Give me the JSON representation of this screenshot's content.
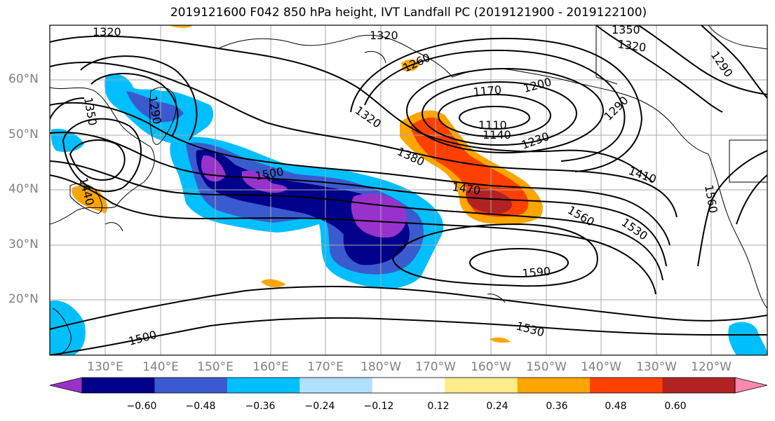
{
  "title": "2019121600 F042 850 hPa height, IVT Landfall PC (2019121900 - 2019122100)",
  "lat_labels": [
    "60°N",
    "50°N",
    "40°N",
    "30°N",
    "20°N"
  ],
  "lon_labels": [
    "130°E",
    "140°E",
    "150°E",
    "160°E",
    "170°E",
    "180°W",
    "170°W",
    "160°W",
    "150°W",
    "140°W",
    "130°W",
    "120°W"
  ],
  "contour_labels": {
    "c1320_nw": "1320",
    "c1320_n": "1320",
    "c1320_ne": "1320",
    "c1350_ne_top": "1350",
    "c1350_w": "1350",
    "c1290_w": "1290",
    "c1260": "1260",
    "c1200": "1200",
    "c1170": "1170",
    "c1110": "1110",
    "c1140": "1140",
    "c1230": "1230",
    "c1290_ne": "1290",
    "c1290_far_ne": "1290",
    "c1320_mid": "1320",
    "c1380": "1380",
    "c1500_mid": "1500",
    "c1410": "1410",
    "c1470": "1470",
    "c1560_mid": "1560",
    "c1530_e": "1530",
    "c1560_e": "1560",
    "c1590": "1590",
    "c1440": "1440",
    "c1530_s": "1530",
    "c1500_s": "1500"
  },
  "colorbar": {
    "colors": [
      "#9932cc",
      "#00008b",
      "#3a5bd0",
      "#00bfff",
      "#b0e2ff",
      "#ffffff",
      "#ffec8b",
      "#ffa500",
      "#ff4000",
      "#b22222",
      "#ff88b0"
    ],
    "tick_labels": [
      "−0.60",
      "−0.48",
      "−0.36",
      "−0.24",
      "−0.12",
      "0.12",
      "0.24",
      "0.36",
      "0.48",
      "0.60"
    ]
  },
  "shading_levels": [
    "-0.60",
    "-0.48",
    "-0.36",
    "-0.24",
    "-0.12",
    "0.12",
    "0.24",
    "0.36",
    "0.48",
    "0.60"
  ]
}
